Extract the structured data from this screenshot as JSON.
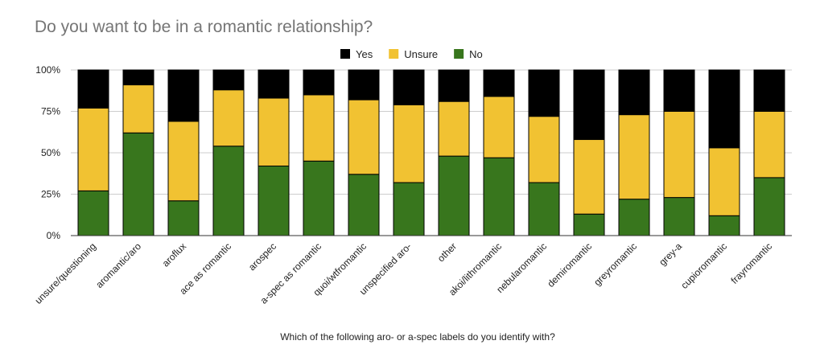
{
  "chart_data": {
    "type": "bar",
    "stacked": true,
    "title": "Do you want to be in a romantic relationship?",
    "xlabel": "Which of the following aro- or a-spec labels do you identify with?",
    "ylabel": "",
    "ylim": [
      0,
      100
    ],
    "yticks": [
      "0%",
      "25%",
      "50%",
      "75%",
      "100%"
    ],
    "legend_position": "top-center",
    "grid": true,
    "categories": [
      "unsure/questioning",
      "aromantic/aro",
      "aroflux",
      "ace as romantic",
      "arospec",
      "a-spec as romantic",
      "quoi/wtfromantic",
      "unspecified aro-",
      "other",
      "akoi/lithromantic",
      "nebularomantic",
      "demiromantic",
      "greyromantic",
      "grey-a",
      "cupioromantic",
      "frayromantic"
    ],
    "series": [
      {
        "name": "No",
        "color": "#38761d",
        "values": [
          27,
          62,
          21,
          54,
          42,
          45,
          37,
          32,
          48,
          47,
          32,
          13,
          22,
          23,
          12,
          35
        ]
      },
      {
        "name": "Unsure",
        "color": "#f1c232",
        "values": [
          50,
          29,
          48,
          34,
          41,
          40,
          45,
          47,
          33,
          37,
          40,
          45,
          51,
          52,
          41,
          40
        ]
      },
      {
        "name": "Yes",
        "color": "#000000",
        "values": [
          23,
          9,
          31,
          12,
          17,
          15,
          18,
          21,
          19,
          16,
          28,
          42,
          27,
          25,
          47,
          25
        ]
      }
    ],
    "legend": [
      "Yes",
      "Unsure",
      "No"
    ]
  }
}
